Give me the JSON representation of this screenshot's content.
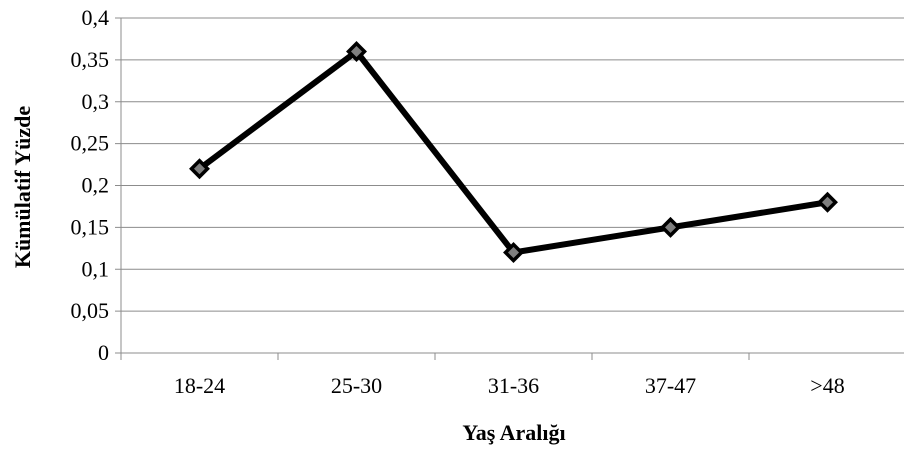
{
  "chart_data": {
    "type": "line",
    "title": "",
    "xlabel": "Yaş Aralığı",
    "ylabel": "Kümülatif Yüzde",
    "categories": [
      "18-24",
      "25-30",
      "31-36",
      "37-47",
      ">48"
    ],
    "series": [
      {
        "values": [
          0.22,
          0.36,
          0.12,
          0.15,
          0.18
        ],
        "color": "#000000",
        "marker": "diamond",
        "marker_color": "#7f7f7f"
      }
    ],
    "ylim": [
      0,
      0.4
    ],
    "yticks": [
      0,
      0.05,
      0.1,
      0.15,
      0.2,
      0.25,
      0.3,
      0.35,
      0.4
    ],
    "ytick_labels": [
      "0",
      "0,05",
      "0,1",
      "0,15",
      "0,2",
      "0,25",
      "0,3",
      "0,35",
      "0,4"
    ],
    "grid": true,
    "legend": "none"
  }
}
